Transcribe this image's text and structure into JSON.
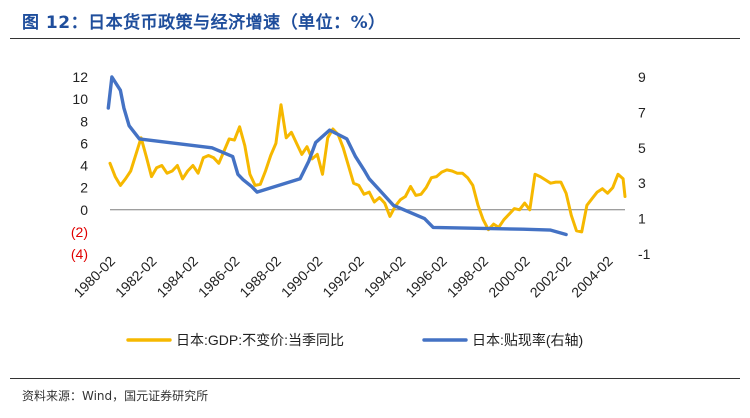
{
  "title": "图 12：日本货币政策与经济增速（单位：%）",
  "source": "资料来源：Wind，国元证券研究所",
  "colors": {
    "gdp": "#f6b800",
    "rate": "#4472c4",
    "negative_tick": "#e00000",
    "title": "#1f4e9c"
  },
  "chart_data": {
    "type": "line",
    "title": "",
    "xlabel": "",
    "ylabel": "",
    "x_range": [
      1980.08,
      2004.92
    ],
    "x_ticks": [
      {
        "label": "1980-02",
        "x": 1980.08
      },
      {
        "label": "1982-02",
        "x": 1982.08
      },
      {
        "label": "1984-02",
        "x": 1984.08
      },
      {
        "label": "1986-02",
        "x": 1986.08
      },
      {
        "label": "1988-02",
        "x": 1988.08
      },
      {
        "label": "1990-02",
        "x": 1990.08
      },
      {
        "label": "1992-02",
        "x": 1992.08
      },
      {
        "label": "1994-02",
        "x": 1994.08
      },
      {
        "label": "1996-02",
        "x": 1996.08
      },
      {
        "label": "1998-02",
        "x": 1998.08
      },
      {
        "label": "2000-02",
        "x": 2000.08
      },
      {
        "label": "2002-02",
        "x": 2002.08
      },
      {
        "label": "2004-02",
        "x": 2004.08
      }
    ],
    "y_left": {
      "range": [
        -4,
        12
      ],
      "ticks": [
        {
          "value": 12,
          "label": "12"
        },
        {
          "value": 10,
          "label": "10"
        },
        {
          "value": 8,
          "label": "8"
        },
        {
          "value": 6,
          "label": "6"
        },
        {
          "value": 4,
          "label": "4"
        },
        {
          "value": 2,
          "label": "2"
        },
        {
          "value": 0,
          "label": "0"
        },
        {
          "value": -2,
          "label": "(2)"
        },
        {
          "value": -4,
          "label": "(4)"
        }
      ]
    },
    "y_right": {
      "range": [
        -1,
        9
      ],
      "ticks": [
        {
          "value": 9,
          "label": "9"
        },
        {
          "value": 7,
          "label": "7"
        },
        {
          "value": 5,
          "label": "5"
        },
        {
          "value": 3,
          "label": "3"
        },
        {
          "value": 1,
          "label": "1"
        },
        {
          "value": -1,
          "label": "-1"
        }
      ]
    },
    "legend_position": "bottom",
    "grid": false,
    "series": [
      {
        "name": "日本:GDP:不变价:当季同比",
        "axis": "left",
        "color": "#f6b800",
        "points": [
          [
            1980.08,
            4.2
          ],
          [
            1980.33,
            3.0
          ],
          [
            1980.58,
            2.2
          ],
          [
            1980.83,
            2.8
          ],
          [
            1981.08,
            3.5
          ],
          [
            1981.33,
            5.0
          ],
          [
            1981.58,
            6.5
          ],
          [
            1981.83,
            4.8
          ],
          [
            1982.08,
            3.0
          ],
          [
            1982.33,
            3.8
          ],
          [
            1982.58,
            4.0
          ],
          [
            1982.83,
            3.3
          ],
          [
            1983.08,
            3.5
          ],
          [
            1983.33,
            4.0
          ],
          [
            1983.58,
            2.8
          ],
          [
            1983.83,
            3.5
          ],
          [
            1984.08,
            4.0
          ],
          [
            1984.33,
            3.3
          ],
          [
            1984.58,
            4.7
          ],
          [
            1984.83,
            4.9
          ],
          [
            1985.08,
            4.7
          ],
          [
            1985.33,
            4.2
          ],
          [
            1985.58,
            5.3
          ],
          [
            1985.83,
            6.4
          ],
          [
            1986.08,
            6.3
          ],
          [
            1986.33,
            7.5
          ],
          [
            1986.58,
            5.8
          ],
          [
            1986.83,
            3.2
          ],
          [
            1987.08,
            2.2
          ],
          [
            1987.33,
            2.3
          ],
          [
            1987.58,
            3.5
          ],
          [
            1987.83,
            4.9
          ],
          [
            1988.08,
            6.0
          ],
          [
            1988.33,
            9.5
          ],
          [
            1988.58,
            6.5
          ],
          [
            1988.83,
            7.0
          ],
          [
            1989.08,
            6.0
          ],
          [
            1989.33,
            5.0
          ],
          [
            1989.58,
            5.7
          ],
          [
            1989.83,
            4.6
          ],
          [
            1990.08,
            5.0
          ],
          [
            1990.33,
            3.2
          ],
          [
            1990.58,
            6.5
          ],
          [
            1990.83,
            7.3
          ],
          [
            1991.08,
            6.8
          ],
          [
            1991.33,
            5.6
          ],
          [
            1991.58,
            4.0
          ],
          [
            1991.83,
            2.4
          ],
          [
            1992.08,
            2.2
          ],
          [
            1992.33,
            1.4
          ],
          [
            1992.58,
            1.6
          ],
          [
            1992.83,
            0.7
          ],
          [
            1993.08,
            1.1
          ],
          [
            1993.33,
            0.6
          ],
          [
            1993.58,
            -0.6
          ],
          [
            1993.83,
            0.3
          ],
          [
            1994.08,
            0.9
          ],
          [
            1994.33,
            1.2
          ],
          [
            1994.58,
            2.1
          ],
          [
            1994.83,
            1.3
          ],
          [
            1995.08,
            1.4
          ],
          [
            1995.33,
            2.0
          ],
          [
            1995.58,
            2.9
          ],
          [
            1995.83,
            3.0
          ],
          [
            1996.08,
            3.4
          ],
          [
            1996.33,
            3.6
          ],
          [
            1996.58,
            3.5
          ],
          [
            1996.83,
            3.3
          ],
          [
            1997.08,
            3.3
          ],
          [
            1997.33,
            2.9
          ],
          [
            1997.58,
            2.2
          ],
          [
            1997.83,
            0.4
          ],
          [
            1998.08,
            -0.9
          ],
          [
            1998.33,
            -1.8
          ],
          [
            1998.58,
            -1.3
          ],
          [
            1998.83,
            -1.6
          ],
          [
            1999.08,
            -0.9
          ],
          [
            1999.33,
            -0.4
          ],
          [
            1999.58,
            0.1
          ],
          [
            1999.83,
            0.0
          ],
          [
            2000.08,
            0.6
          ],
          [
            2000.33,
            0.0
          ],
          [
            2000.58,
            3.2
          ],
          [
            2000.83,
            3.0
          ],
          [
            2001.08,
            2.7
          ],
          [
            2001.33,
            2.4
          ],
          [
            2001.58,
            2.5
          ],
          [
            2001.83,
            2.5
          ],
          [
            2002.08,
            1.5
          ],
          [
            2002.33,
            -0.5
          ],
          [
            2002.58,
            -1.9
          ],
          [
            2002.83,
            -2.0
          ],
          [
            2003.08,
            0.4
          ],
          [
            2003.33,
            1.0
          ],
          [
            2003.58,
            1.6
          ],
          [
            2003.83,
            1.9
          ],
          [
            2004.08,
            1.5
          ],
          [
            2004.33,
            2.0
          ],
          [
            2004.58,
            3.2
          ],
          [
            2004.83,
            2.8
          ],
          [
            2004.92,
            1.2
          ]
        ]
      },
      {
        "name": "日本:贴现率(右轴)",
        "axis": "right",
        "color": "#4472c4",
        "points": [
          [
            1980.0,
            7.25
          ],
          [
            1980.17,
            9.0
          ],
          [
            1980.58,
            8.25
          ],
          [
            1980.75,
            7.25
          ],
          [
            1981.0,
            6.25
          ],
          [
            1981.5,
            5.5
          ],
          [
            1985.0,
            5.0
          ],
          [
            1986.0,
            4.5
          ],
          [
            1986.25,
            3.5
          ],
          [
            1986.5,
            3.2
          ],
          [
            1986.92,
            2.8
          ],
          [
            1987.17,
            2.5
          ],
          [
            1989.25,
            3.25
          ],
          [
            1989.67,
            4.25
          ],
          [
            1990.0,
            5.3
          ],
          [
            1990.67,
            6.0
          ],
          [
            1991.5,
            5.5
          ],
          [
            1991.92,
            4.5
          ],
          [
            1992.33,
            3.75
          ],
          [
            1992.58,
            3.25
          ],
          [
            1993.17,
            2.5
          ],
          [
            1993.75,
            1.75
          ],
          [
            1995.25,
            1.0
          ],
          [
            1995.67,
            0.5
          ],
          [
            2000.0,
            0.4
          ],
          [
            2001.33,
            0.35
          ],
          [
            2002.08,
            0.1
          ]
        ]
      }
    ]
  }
}
